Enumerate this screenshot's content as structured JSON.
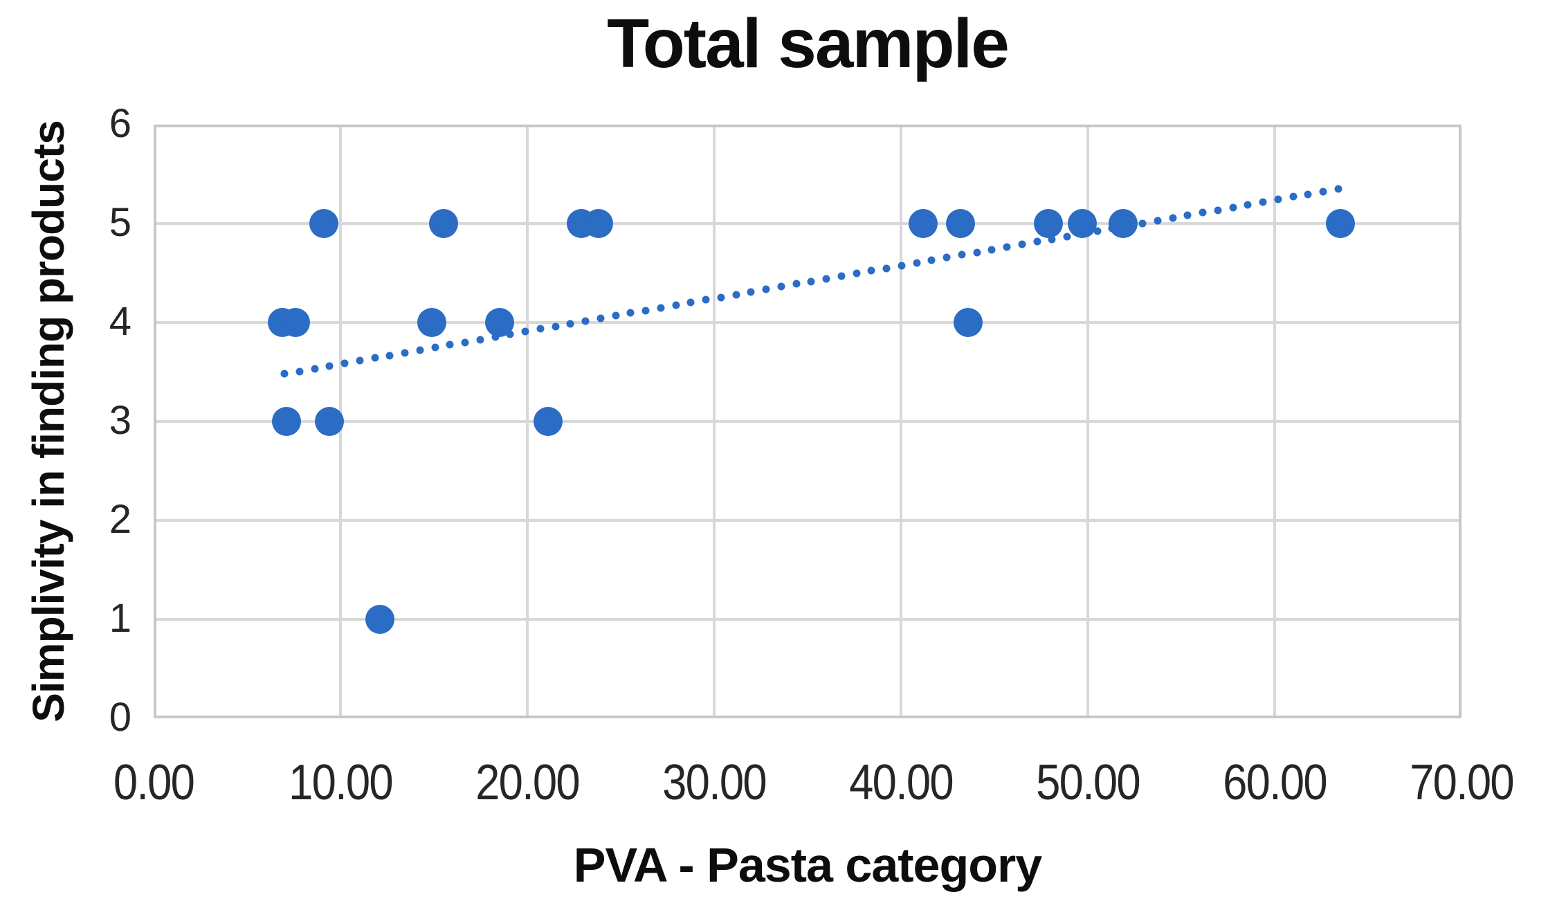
{
  "title": "Total sample",
  "chart_data": {
    "type": "scatter",
    "title": "Total sample",
    "xlabel": "PVA - Pasta category",
    "ylabel": "Simplivity in finding products",
    "xlim": [
      0,
      70
    ],
    "ylim": [
      0,
      6
    ],
    "grid": true,
    "legend": "none",
    "x_ticks": [
      0,
      10,
      20,
      30,
      40,
      50,
      60,
      70
    ],
    "x_tick_labels": [
      "0.00",
      "10.00",
      "20.00",
      "30.00",
      "40.00",
      "50.00",
      "60.00",
      "70.00"
    ],
    "y_ticks": [
      0,
      1,
      2,
      3,
      4,
      5,
      6
    ],
    "y_tick_labels": [
      "0",
      "1",
      "2",
      "3",
      "4",
      "5",
      "6"
    ],
    "points": [
      [
        6.9,
        4
      ],
      [
        7.1,
        3
      ],
      [
        7.6,
        4
      ],
      [
        9.1,
        5
      ],
      [
        9.4,
        3
      ],
      [
        12.1,
        1
      ],
      [
        14.9,
        4
      ],
      [
        15.5,
        5
      ],
      [
        18.5,
        4
      ],
      [
        21.1,
        3
      ],
      [
        22.9,
        5
      ],
      [
        23.8,
        5
      ],
      [
        41.2,
        5
      ],
      [
        43.2,
        5
      ],
      [
        43.6,
        4
      ],
      [
        47.9,
        5
      ],
      [
        49.7,
        5
      ],
      [
        51.9,
        5
      ],
      [
        63.5,
        5
      ]
    ],
    "trendline": {
      "style": "dotted",
      "start": {
        "x": 7.0,
        "y": 3.48
      },
      "end": {
        "x": 63.4,
        "y": 5.35
      }
    },
    "colors": {
      "marker": "#2b6cc4",
      "trend": "#2b6cc4",
      "gridline": "#d8d8d8",
      "border": "#c7c7c7",
      "tick_text": "#262626",
      "title_text": "#0d0d0d"
    }
  }
}
